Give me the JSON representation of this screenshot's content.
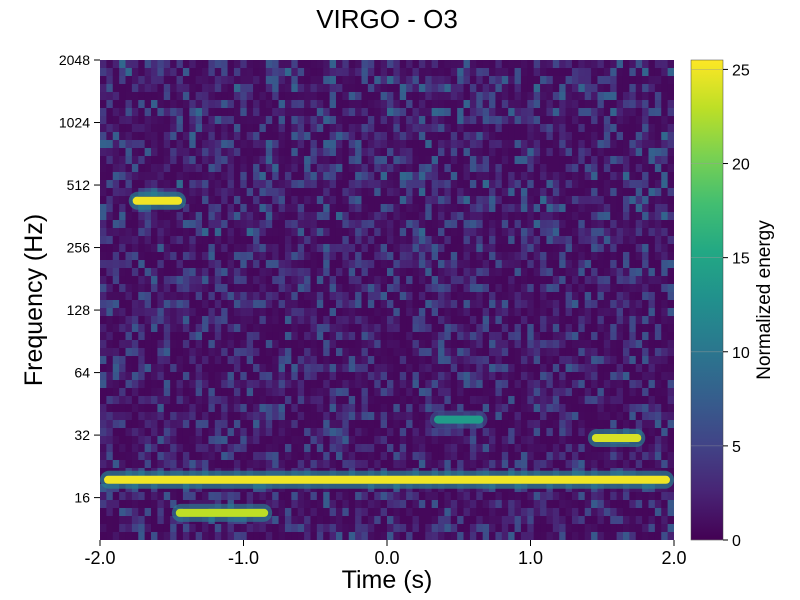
{
  "chart_data": {
    "type": "heatmap",
    "title": "VIRGO - O3",
    "xlabel": "Time (s)",
    "ylabel": "Frequency (Hz)",
    "xlim": [
      -2.0,
      2.0
    ],
    "ylim": [
      10,
      2048
    ],
    "yscale": "log2",
    "xticks": [
      -2.0,
      -1.0,
      0.0,
      1.0,
      2.0
    ],
    "xtick_labels": [
      "-2.0",
      "-1.0",
      "0.0",
      "1.0",
      "2.0"
    ],
    "yticks": [
      16,
      32,
      64,
      128,
      256,
      512,
      1024,
      2048
    ],
    "ytick_labels": [
      "16",
      "32",
      "64",
      "128",
      "256",
      "512",
      "1024",
      "2048"
    ],
    "colorbar": {
      "label": "Normalized energy",
      "range": [
        0,
        25.5
      ],
      "ticks": [
        0,
        5,
        10,
        15,
        20,
        25
      ],
      "tick_labels": [
        "0",
        "5",
        "10",
        "15",
        "20",
        "25"
      ],
      "colormap": "viridis"
    },
    "features": [
      {
        "t_start": -2.0,
        "t_end": 2.0,
        "freq": 19.5,
        "energy": 25
      },
      {
        "t_start": -1.5,
        "t_end": -0.8,
        "freq": 13.5,
        "energy": 23
      },
      {
        "t_start": 1.4,
        "t_end": 1.8,
        "freq": 31,
        "energy": 24
      },
      {
        "t_start": -1.8,
        "t_end": -1.4,
        "freq": 430,
        "energy": 25
      },
      {
        "t_start": 0.3,
        "t_end": 0.7,
        "freq": 38,
        "energy": 14
      }
    ]
  }
}
